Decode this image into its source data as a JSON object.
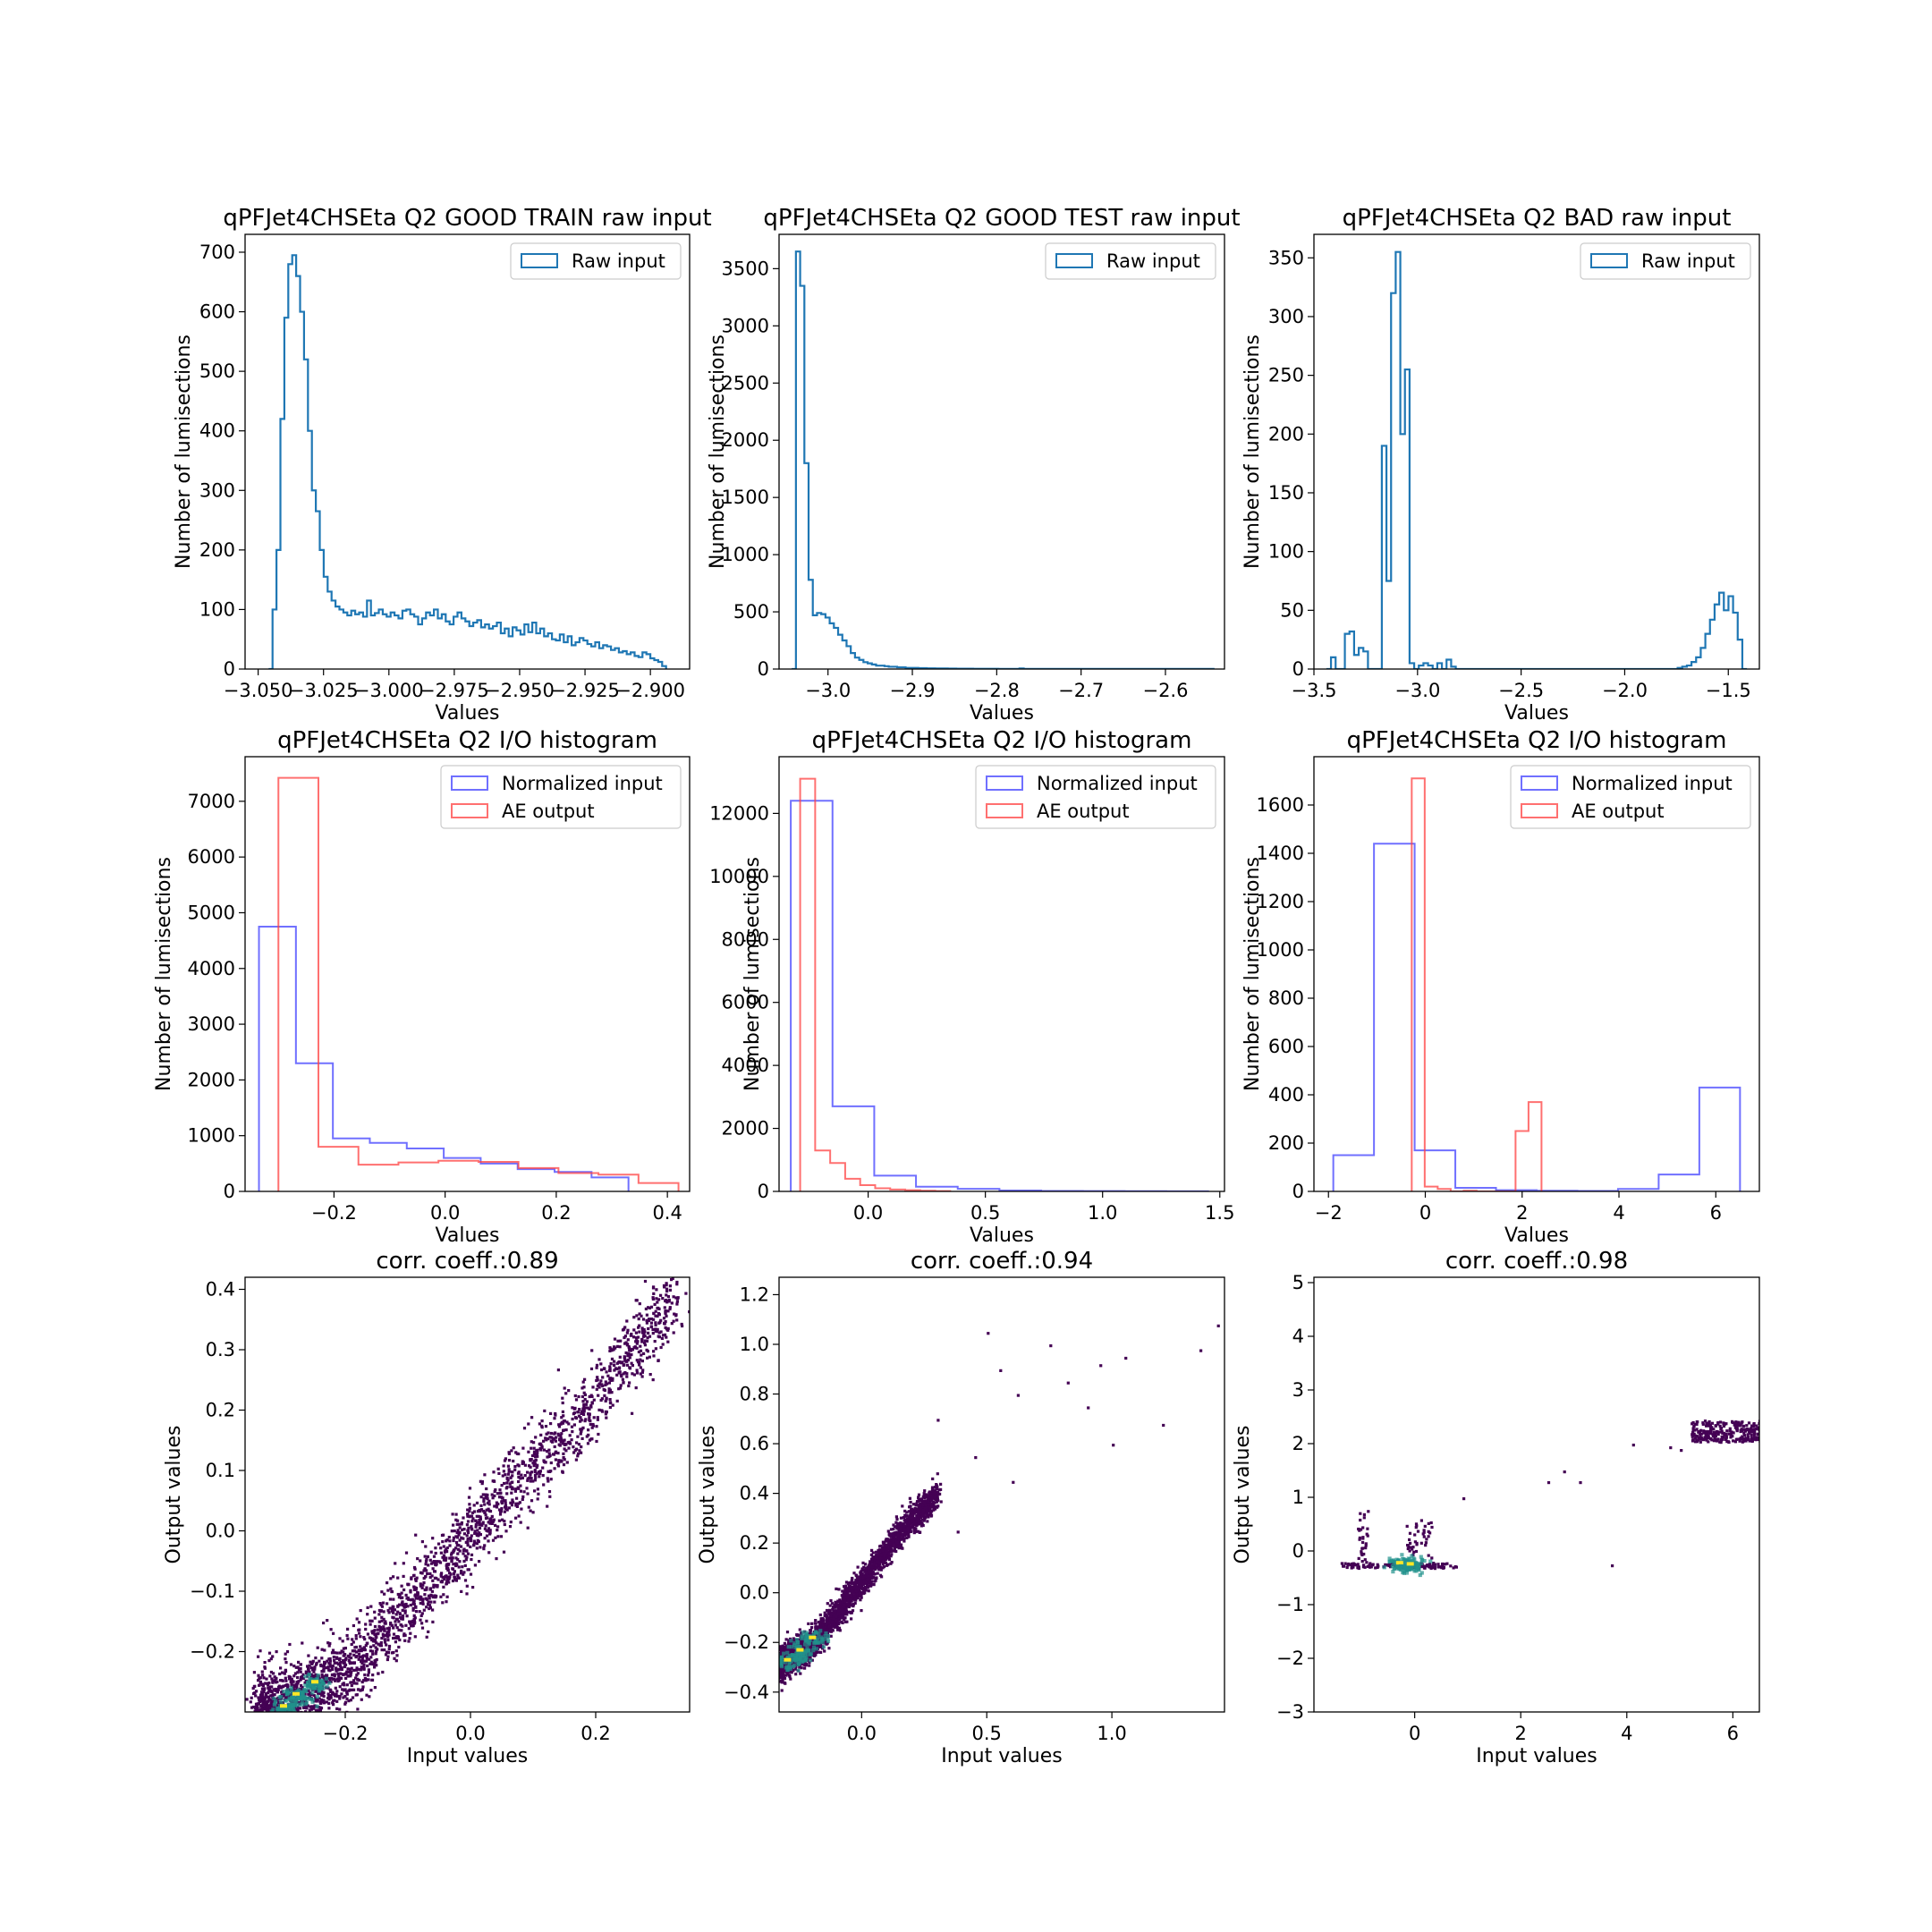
{
  "figure": {
    "background": "#ffffff"
  },
  "colors": {
    "raw": "#1f77b4",
    "normalized": "#4040ff",
    "ae": "#ff4040",
    "viridis_dark": "#440154",
    "viridis_mid": "#21918c",
    "viridis_light": "#fde725"
  },
  "chart_data": [
    {
      "id": "p1",
      "type": "step-histogram",
      "title": "qPFJet4CHSEta Q2 GOOD TRAIN raw input",
      "xlabel": "Values",
      "ylabel": "Number of lumisections",
      "xlim": [
        -3.055,
        -2.885
      ],
      "ylim": [
        0,
        730
      ],
      "xticks": [
        -3.05,
        -3.025,
        -3.0,
        -2.975,
        -2.95,
        -2.925,
        -2.9
      ],
      "xtick_labels": [
        "−3.050",
        "−3.025",
        "−3.000",
        "−2.975",
        "−2.950",
        "−2.925",
        "−2.900"
      ],
      "yticks": [
        0,
        100,
        200,
        300,
        400,
        500,
        600,
        700
      ],
      "ytick_labels": [
        "0",
        "100",
        "200",
        "300",
        "400",
        "500",
        "600",
        "700"
      ],
      "legend": [
        {
          "label": "Raw input",
          "color_key": "raw"
        }
      ],
      "legend_position": "top-right",
      "series": [
        {
          "name": "Raw input",
          "color_key": "raw",
          "x_start": -3.046,
          "x_end": -2.894,
          "values": [
            0,
            100,
            200,
            420,
            590,
            680,
            695,
            660,
            600,
            520,
            400,
            300,
            265,
            200,
            155,
            130,
            115,
            105,
            100,
            95,
            90,
            98,
            92,
            95,
            88,
            115,
            90,
            94,
            100,
            92,
            88,
            95,
            90,
            85,
            98,
            100,
            92,
            88,
            75,
            85,
            95,
            90,
            100,
            85,
            92,
            80,
            75,
            88,
            95,
            85,
            80,
            72,
            78,
            82,
            70,
            75,
            68,
            72,
            78,
            60,
            68,
            55,
            70,
            65,
            58,
            75,
            62,
            78,
            60,
            68,
            55,
            60,
            50,
            48,
            58,
            45,
            55,
            40,
            45,
            52,
            48,
            42,
            38,
            45,
            35,
            40,
            38,
            32,
            35,
            28,
            30,
            25,
            28,
            22,
            20,
            28,
            25,
            18,
            15,
            12,
            5
          ]
        }
      ]
    },
    {
      "id": "p2",
      "type": "step-histogram",
      "title": "qPFJet4CHSEta Q2 GOOD TEST raw input",
      "xlabel": "Values",
      "ylabel": "Number of lumisections",
      "xlim": [
        -3.058,
        -2.53
      ],
      "ylim": [
        0,
        3800
      ],
      "xticks": [
        -3.0,
        -2.9,
        -2.8,
        -2.7,
        -2.6
      ],
      "xtick_labels": [
        "−3.0",
        "−2.9",
        "−2.8",
        "−2.7",
        "−2.6"
      ],
      "yticks": [
        0,
        500,
        1000,
        1500,
        2000,
        2500,
        3000,
        3500
      ],
      "ytick_labels": [
        "0",
        "500",
        "1000",
        "1500",
        "2000",
        "2500",
        "3000",
        "3500"
      ],
      "legend": [
        {
          "label": "Raw input",
          "color_key": "raw"
        }
      ],
      "legend_position": "top-right",
      "series": [
        {
          "name": "Raw input",
          "color_key": "raw",
          "x_start": -3.043,
          "x_end": -2.543,
          "values": [
            0,
            3650,
            3350,
            1800,
            780,
            470,
            490,
            480,
            450,
            400,
            360,
            300,
            250,
            200,
            140,
            100,
            80,
            60,
            50,
            40,
            30,
            30,
            25,
            20,
            20,
            15,
            15,
            10,
            10,
            10,
            8,
            8,
            6,
            6,
            5,
            5,
            5,
            4,
            4,
            3,
            3,
            3,
            3,
            2,
            2,
            2,
            2,
            2,
            2,
            1,
            1,
            1,
            1,
            1,
            5,
            1,
            1,
            1,
            1,
            1,
            1,
            1,
            1,
            1,
            1,
            1,
            1,
            1,
            1,
            1,
            1,
            1,
            1,
            1,
            1,
            1,
            1,
            1,
            1,
            1,
            1,
            1,
            1,
            1,
            1,
            1,
            1,
            1,
            1,
            1,
            1,
            1,
            1,
            1,
            1,
            1,
            1,
            1,
            1,
            1
          ]
        }
      ]
    },
    {
      "id": "p3",
      "type": "step-histogram",
      "title": "qPFJet4CHSEta Q2 BAD raw input",
      "xlabel": "Values",
      "ylabel": "Number of lumisections",
      "xlim": [
        -3.5,
        -1.35
      ],
      "ylim": [
        0,
        370
      ],
      "xticks": [
        -3.5,
        -3.0,
        -2.5,
        -2.0,
        -1.5
      ],
      "xtick_labels": [
        "−3.5",
        "−3.0",
        "−2.5",
        "−2.0",
        "−1.5"
      ],
      "yticks": [
        0,
        50,
        100,
        150,
        200,
        250,
        300,
        350
      ],
      "ytick_labels": [
        "0",
        "50",
        "100",
        "150",
        "200",
        "250",
        "300",
        "350"
      ],
      "legend": [
        {
          "label": "Raw input",
          "color_key": "raw"
        }
      ],
      "legend_position": "top-right",
      "series": [
        {
          "name": "Raw input",
          "color_key": "raw",
          "x_start": -3.44,
          "x_end": -1.41,
          "values": [
            0,
            10,
            0,
            0,
            30,
            32,
            12,
            18,
            15,
            0,
            0,
            0,
            190,
            75,
            320,
            355,
            200,
            255,
            5,
            0,
            3,
            5,
            3,
            0,
            5,
            0,
            8,
            2,
            0,
            0,
            0,
            0,
            0,
            0,
            0,
            0,
            0,
            0,
            0,
            0,
            0,
            0,
            0,
            0,
            0,
            0,
            0,
            0,
            0,
            0,
            0,
            0,
            0,
            0,
            0,
            0,
            0,
            0,
            0,
            0,
            0,
            0,
            0,
            0,
            0,
            0,
            0,
            0,
            0,
            0,
            0,
            0,
            0,
            0,
            0,
            0,
            1,
            2,
            3,
            6,
            10,
            18,
            30,
            42,
            55,
            65,
            50,
            62,
            48,
            25,
            0
          ]
        }
      ]
    },
    {
      "id": "p4",
      "type": "step-histogram",
      "title": "qPFJet4CHSEta Q2 I/O histogram",
      "xlabel": "Values",
      "ylabel": "Number of lumisections",
      "xlim": [
        -0.36,
        0.44
      ],
      "ylim": [
        0,
        7800
      ],
      "xticks": [
        -0.2,
        0.0,
        0.2,
        0.4
      ],
      "xtick_labels": [
        "−0.2",
        "0.0",
        "0.2",
        "0.4"
      ],
      "yticks": [
        0,
        1000,
        2000,
        3000,
        4000,
        5000,
        6000,
        7000
      ],
      "ytick_labels": [
        "0",
        "1000",
        "2000",
        "3000",
        "4000",
        "5000",
        "6000",
        "7000"
      ],
      "legend": [
        {
          "label": "Normalized input",
          "color_key": "normalized"
        },
        {
          "label": "AE output",
          "color_key": "ae"
        }
      ],
      "legend_position": "top-right",
      "series": [
        {
          "name": "Normalized input",
          "color_key": "normalized",
          "x_start": -0.335,
          "x_end": 0.33,
          "values": [
            4750,
            2300,
            950,
            870,
            770,
            600,
            500,
            400,
            350,
            250
          ]
        },
        {
          "name": "AE output",
          "color_key": "ae",
          "x_start": -0.3,
          "x_end": 0.42,
          "values": [
            7420,
            800,
            480,
            520,
            550,
            530,
            420,
            330,
            300,
            150
          ]
        }
      ]
    },
    {
      "id": "p5",
      "type": "step-histogram",
      "title": "qPFJet4CHSEta Q2 I/O histogram",
      "xlabel": "Values",
      "ylabel": "Number of lumisections",
      "xlim": [
        -0.38,
        1.52
      ],
      "ylim": [
        0,
        13800
      ],
      "xticks": [
        0.0,
        0.5,
        1.0,
        1.5
      ],
      "xtick_labels": [
        "0.0",
        "0.5",
        "1.0",
        "1.5"
      ],
      "yticks": [
        0,
        2000,
        4000,
        6000,
        8000,
        10000,
        12000
      ],
      "ytick_labels": [
        "0",
        "2000",
        "4000",
        "6000",
        "8000",
        "10000",
        "12000"
      ],
      "legend": [
        {
          "label": "Normalized input",
          "color_key": "normalized"
        },
        {
          "label": "AE output",
          "color_key": "ae"
        }
      ],
      "legend_position": "top-right",
      "series": [
        {
          "name": "Normalized input",
          "color_key": "normalized",
          "x_start": -0.33,
          "x_end": 1.45,
          "values": [
            12400,
            2700,
            500,
            150,
            80,
            30,
            15,
            10,
            8,
            5
          ]
        },
        {
          "name": "AE output",
          "color_key": "ae",
          "x_start": -0.29,
          "x_end": 0.35,
          "values": [
            13100,
            1300,
            900,
            400,
            200,
            100,
            60,
            40,
            20,
            10
          ]
        }
      ]
    },
    {
      "id": "p6",
      "type": "step-histogram",
      "title": "qPFJet4CHSEta Q2 I/O histogram",
      "xlabel": "Values",
      "ylabel": "Number of lumisections",
      "xlim": [
        -2.3,
        6.9
      ],
      "ylim": [
        0,
        1800
      ],
      "xticks": [
        -2,
        0,
        2,
        4,
        6
      ],
      "xtick_labels": [
        "−2",
        "0",
        "2",
        "4",
        "6"
      ],
      "yticks": [
        0,
        200,
        400,
        600,
        800,
        1000,
        1200,
        1400,
        1600
      ],
      "ytick_labels": [
        "0",
        "200",
        "400",
        "600",
        "800",
        "1000",
        "1200",
        "1400",
        "1600"
      ],
      "legend": [
        {
          "label": "Normalized input",
          "color_key": "normalized"
        },
        {
          "label": "AE output",
          "color_key": "ae"
        }
      ],
      "legend_position": "top-right",
      "series": [
        {
          "name": "Normalized input",
          "color_key": "normalized",
          "x_start": -1.9,
          "x_end": 6.5,
          "values": [
            150,
            1440,
            170,
            15,
            5,
            3,
            2,
            10,
            70,
            430
          ]
        },
        {
          "name": "AE output",
          "color_key": "ae",
          "x_start": -0.28,
          "x_end": 2.4,
          "values": [
            1710,
            20,
            10,
            0,
            3,
            0,
            0,
            0,
            250,
            370
          ]
        }
      ]
    },
    {
      "id": "p7",
      "type": "heatmap",
      "title": "corr. coeff.:0.89",
      "xlabel": "Input values",
      "ylabel": "Output values",
      "xlim": [
        -0.36,
        0.35
      ],
      "ylim": [
        -0.3,
        0.42
      ],
      "xticks": [
        -0.2,
        0.0,
        0.2
      ],
      "xtick_labels": [
        "−0.2",
        "0.0",
        "0.2"
      ],
      "yticks": [
        -0.2,
        -0.1,
        0.0,
        0.1,
        0.2,
        0.3,
        0.4
      ],
      "ytick_labels": [
        "−0.2",
        "−0.1",
        "0.0",
        "0.1",
        "0.2",
        "0.3",
        "0.4"
      ],
      "trend": {
        "x": [
          -0.34,
          -0.2,
          0.0,
          0.2,
          0.33
        ],
        "y": [
          -0.3,
          -0.24,
          0.0,
          0.22,
          0.4
        ]
      },
      "spread": 0.06,
      "hotspots": [
        [
          -0.3,
          -0.29
        ],
        [
          -0.25,
          -0.25
        ],
        [
          -0.28,
          -0.27
        ]
      ]
    },
    {
      "id": "p8",
      "type": "heatmap",
      "title": "corr. coeff.:0.94",
      "xlabel": "Input values",
      "ylabel": "Output values",
      "xlim": [
        -0.33,
        1.45
      ],
      "ylim": [
        -0.48,
        1.27
      ],
      "xticks": [
        0.0,
        0.5,
        1.0
      ],
      "xtick_labels": [
        "0.0",
        "0.5",
        "1.0"
      ],
      "yticks": [
        -0.4,
        -0.2,
        0.0,
        0.2,
        0.4,
        0.6,
        0.8,
        1.0,
        1.2
      ],
      "ytick_labels": [
        "−0.4",
        "−0.2",
        "0.0",
        "0.2",
        "0.4",
        "0.6",
        "0.8",
        "1.0",
        "1.2"
      ],
      "trend": {
        "x": [
          -0.33,
          -0.2,
          0.0,
          0.15,
          0.3
        ],
        "y": [
          -0.28,
          -0.2,
          0.05,
          0.25,
          0.4
        ]
      },
      "spread": 0.06,
      "hotspots": [
        [
          -0.3,
          -0.27
        ],
        [
          -0.25,
          -0.23
        ],
        [
          -0.2,
          -0.18
        ]
      ],
      "outliers": [
        [
          0.5,
          1.05
        ],
        [
          0.55,
          0.9
        ],
        [
          0.62,
          0.8
        ],
        [
          0.75,
          1.0
        ],
        [
          0.82,
          0.85
        ],
        [
          0.9,
          0.75
        ],
        [
          0.95,
          0.92
        ],
        [
          1.0,
          0.6
        ],
        [
          1.05,
          0.95
        ],
        [
          1.2,
          0.68
        ],
        [
          1.35,
          0.98
        ],
        [
          1.42,
          1.08
        ],
        [
          0.45,
          0.55
        ],
        [
          0.38,
          0.25
        ],
        [
          0.3,
          0.7
        ],
        [
          0.6,
          0.45
        ]
      ]
    },
    {
      "id": "p9",
      "type": "heatmap",
      "title": "corr. coeff.:0.98",
      "xlabel": "Input values",
      "ylabel": "Output values",
      "xlim": [
        -1.9,
        6.5
      ],
      "ylim": [
        -3.0,
        5.1
      ],
      "xticks": [
        0,
        2,
        4,
        6
      ],
      "xtick_labels": [
        "0",
        "2",
        "4",
        "6"
      ],
      "yticks": [
        -3,
        -2,
        -1,
        0,
        1,
        2,
        3,
        4,
        5
      ],
      "ytick_labels": [
        "−3",
        "−2",
        "−1",
        "0",
        "1",
        "2",
        "3",
        "4",
        "5"
      ],
      "clusters": [
        {
          "x": [
            -1.4,
            0.8
          ],
          "y": [
            -0.3,
            -0.2
          ],
          "n": 120
        },
        {
          "x": [
            -1.1,
            -0.9
          ],
          "y": [
            -0.2,
            0.8
          ],
          "n": 30
        },
        {
          "x": [
            -0.2,
            0.3
          ],
          "y": [
            -0.2,
            0.6
          ],
          "n": 40
        },
        {
          "x": [
            5.2,
            6.5
          ],
          "y": [
            2.05,
            2.45
          ],
          "n": 260
        }
      ],
      "hotspots": [
        [
          -0.3,
          -0.22
        ],
        [
          -0.1,
          -0.24
        ]
      ],
      "outliers": [
        [
          2.5,
          1.3
        ],
        [
          2.8,
          1.5
        ],
        [
          3.1,
          1.3
        ],
        [
          4.1,
          2.0
        ],
        [
          4.8,
          1.95
        ],
        [
          5.0,
          1.9
        ],
        [
          3.7,
          -0.25
        ],
        [
          0.9,
          1.0
        ]
      ]
    }
  ]
}
